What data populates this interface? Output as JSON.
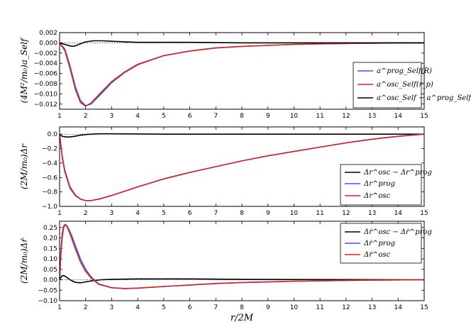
{
  "chart_data": [
    {
      "type": "line",
      "ylabel": "(4M²/m₀)a_Self",
      "xlim": [
        1,
        15
      ],
      "ylim": [
        -0.013,
        0.002
      ],
      "xticks": [
        "1",
        "2",
        "3",
        "4",
        "5",
        "6",
        "7",
        "8",
        "9",
        "10",
        "11",
        "12",
        "13",
        "14",
        "15"
      ],
      "yticks": [
        {
          "v": 0.002,
          "label": "0.002"
        },
        {
          "v": 0.0,
          "label": "0.000"
        },
        {
          "v": -0.002,
          "label": "−0.002"
        },
        {
          "v": -0.004,
          "label": "−0.004"
        },
        {
          "v": -0.006,
          "label": "−0.006"
        },
        {
          "v": -0.008,
          "label": "−0.008"
        },
        {
          "v": -0.01,
          "label": "−0.010"
        },
        {
          "v": -0.012,
          "label": "−0.012"
        }
      ],
      "legend_position": "center-right",
      "series": [
        {
          "name": "a^prog_Self(R)",
          "color": "#3355ff",
          "x": [
            1.0,
            1.2,
            1.4,
            1.6,
            1.8,
            2.0,
            2.2,
            2.5,
            3.0,
            3.5,
            4.0,
            5.0,
            6.0,
            7.0,
            8.0,
            9.0,
            10.0,
            11.0,
            12.0,
            13.0,
            14.0,
            15.0
          ],
          "y": [
            0.0,
            -0.0012,
            -0.0045,
            -0.0085,
            -0.0113,
            -0.0123,
            -0.012,
            -0.0105,
            -0.0078,
            -0.0058,
            -0.0043,
            -0.0025,
            -0.0016,
            -0.001,
            -0.0007,
            -0.0005,
            -0.0003,
            -0.0002,
            -0.00012,
            -7e-05,
            -3e-05,
            0.0
          ]
        },
        {
          "name": "a^osc_Self(r_p)",
          "color": "#dd2222",
          "x": [
            1.0,
            1.2,
            1.4,
            1.6,
            1.8,
            2.0,
            2.2,
            2.5,
            3.0,
            3.5,
            4.0,
            5.0,
            6.0,
            7.0,
            8.0,
            9.0,
            10.0,
            11.0,
            12.0,
            13.0,
            14.0,
            15.0
          ],
          "y": [
            0.0,
            -0.0015,
            -0.005,
            -0.009,
            -0.0117,
            -0.0124,
            -0.0118,
            -0.0102,
            -0.0076,
            -0.0057,
            -0.0042,
            -0.0025,
            -0.0016,
            -0.001,
            -0.0007,
            -0.0005,
            -0.0003,
            -0.0002,
            -0.00012,
            -7e-05,
            -3e-05,
            0.0
          ]
        },
        {
          "name": "a^osc_Self − a^prog_Self",
          "color": "#000000",
          "x": [
            1.0,
            1.2,
            1.4,
            1.5,
            1.6,
            1.8,
            2.0,
            2.3,
            2.6,
            3.0,
            4.0,
            6.0,
            8.0,
            10.0,
            12.0,
            15.0
          ],
          "y": [
            0.0,
            -0.0003,
            -0.0006,
            -0.0007,
            -0.0006,
            -0.0002,
            0.0002,
            0.0004,
            0.0004,
            0.0003,
            0.0001,
            0.0001,
            0.0,
            0.0,
            0.0,
            0.0
          ]
        }
      ]
    },
    {
      "type": "line",
      "ylabel": "(2M/m₀)Δr",
      "xlim": [
        1,
        15
      ],
      "ylim": [
        -1.0,
        0.1
      ],
      "xticks": [
        "1",
        "2",
        "3",
        "4",
        "5",
        "6",
        "7",
        "8",
        "9",
        "10",
        "11",
        "12",
        "13",
        "14",
        "15"
      ],
      "yticks": [
        {
          "v": 0.0,
          "label": "0.0"
        },
        {
          "v": -0.2,
          "label": "−0.2"
        },
        {
          "v": -0.4,
          "label": "−0.4"
        },
        {
          "v": -0.6,
          "label": "−0.6"
        },
        {
          "v": -0.8,
          "label": "−0.8"
        },
        {
          "v": -1.0,
          "label": "−1.0"
        }
      ],
      "legend_position": "center-right",
      "series": [
        {
          "name": "Δr^osc − Δr^prog",
          "color": "#000000",
          "x": [
            1.0,
            1.1,
            1.3,
            1.5,
            1.8,
            2.0,
            2.5,
            3.0,
            5.0,
            10.0,
            15.0
          ],
          "y": [
            0.0,
            -0.03,
            -0.04,
            -0.035,
            -0.015,
            -0.005,
            0.005,
            0.005,
            0.0,
            0.0,
            0.0
          ]
        },
        {
          "name": "Δr^prog",
          "color": "#3355ff",
          "x": [
            1.0,
            1.1,
            1.2,
            1.4,
            1.6,
            1.8,
            2.0,
            2.2,
            2.5,
            3.0,
            3.5,
            4.0,
            5.0,
            6.0,
            7.0,
            8.0,
            9.0,
            10.0,
            11.0,
            12.0,
            13.0,
            14.0,
            15.0
          ],
          "y": [
            0.0,
            -0.3,
            -0.5,
            -0.73,
            -0.84,
            -0.9,
            -0.92,
            -0.92,
            -0.9,
            -0.85,
            -0.79,
            -0.73,
            -0.62,
            -0.53,
            -0.45,
            -0.37,
            -0.3,
            -0.24,
            -0.18,
            -0.12,
            -0.07,
            -0.03,
            0.0
          ]
        },
        {
          "name": "Δr^osc",
          "color": "#dd2222",
          "x": [
            1.0,
            1.1,
            1.2,
            1.4,
            1.6,
            1.8,
            2.0,
            2.2,
            2.5,
            3.0,
            3.5,
            4.0,
            5.0,
            6.0,
            7.0,
            8.0,
            9.0,
            10.0,
            11.0,
            12.0,
            13.0,
            14.0,
            15.0
          ],
          "y": [
            0.0,
            -0.32,
            -0.52,
            -0.75,
            -0.85,
            -0.9,
            -0.92,
            -0.92,
            -0.9,
            -0.85,
            -0.79,
            -0.73,
            -0.62,
            -0.53,
            -0.45,
            -0.37,
            -0.3,
            -0.24,
            -0.18,
            -0.12,
            -0.07,
            -0.03,
            0.0
          ]
        }
      ]
    },
    {
      "type": "line",
      "ylabel": "(2M/m₀)Δṙ",
      "xlabel": "r/2M",
      "xlim": [
        1,
        15
      ],
      "ylim": [
        -0.1,
        0.28
      ],
      "xticks": [
        "1",
        "2",
        "3",
        "4",
        "5",
        "6",
        "7",
        "8",
        "9",
        "10",
        "11",
        "12",
        "13",
        "14",
        "15"
      ],
      "yticks": [
        {
          "v": 0.25,
          "label": "0.25"
        },
        {
          "v": 0.2,
          "label": "0.20"
        },
        {
          "v": 0.15,
          "label": "0.15"
        },
        {
          "v": 0.1,
          "label": "0.10"
        },
        {
          "v": 0.05,
          "label": "0.05"
        },
        {
          "v": 0.0,
          "label": "0.00"
        },
        {
          "v": -0.05,
          "label": "−0.05"
        },
        {
          "v": -0.1,
          "label": "−0.10"
        }
      ],
      "legend_position": "top-right",
      "series": [
        {
          "name": "Δṙ^osc − Δṙ^prog",
          "color": "#000000",
          "x": [
            1.0,
            1.1,
            1.2,
            1.4,
            1.6,
            1.8,
            2.0,
            2.3,
            2.6,
            3.0,
            4.0,
            6.0,
            8.0,
            10.0,
            15.0
          ],
          "y": [
            0.0,
            0.02,
            0.018,
            0.0,
            -0.012,
            -0.015,
            -0.01,
            -0.004,
            0.0,
            0.002,
            0.004,
            0.004,
            0.002,
            0.001,
            0.0
          ]
        },
        {
          "name": "Δṙ^prog",
          "color": "#3355ff",
          "x": [
            1.0,
            1.05,
            1.1,
            1.15,
            1.2,
            1.25,
            1.3,
            1.4,
            1.5,
            1.6,
            1.8,
            2.0,
            2.2,
            2.5,
            3.0,
            3.5,
            4.0,
            5.0,
            6.0,
            7.0,
            8.0,
            10.0,
            12.0,
            15.0
          ],
          "y": [
            0.0,
            0.12,
            0.2,
            0.245,
            0.26,
            0.262,
            0.255,
            0.23,
            0.2,
            0.165,
            0.1,
            0.05,
            0.015,
            -0.02,
            -0.038,
            -0.042,
            -0.04,
            -0.032,
            -0.025,
            -0.018,
            -0.013,
            -0.007,
            -0.003,
            0.0
          ]
        },
        {
          "name": "Δṙ^osc",
          "color": "#dd2222",
          "x": [
            1.0,
            1.05,
            1.1,
            1.15,
            1.2,
            1.25,
            1.3,
            1.4,
            1.5,
            1.6,
            1.8,
            2.0,
            2.2,
            2.5,
            3.0,
            3.5,
            4.0,
            5.0,
            6.0,
            7.0,
            8.0,
            10.0,
            12.0,
            15.0
          ],
          "y": [
            0.0,
            0.14,
            0.22,
            0.255,
            0.265,
            0.26,
            0.25,
            0.22,
            0.185,
            0.15,
            0.085,
            0.04,
            0.01,
            -0.022,
            -0.038,
            -0.042,
            -0.04,
            -0.032,
            -0.025,
            -0.018,
            -0.013,
            -0.007,
            -0.003,
            0.0
          ]
        }
      ]
    }
  ]
}
